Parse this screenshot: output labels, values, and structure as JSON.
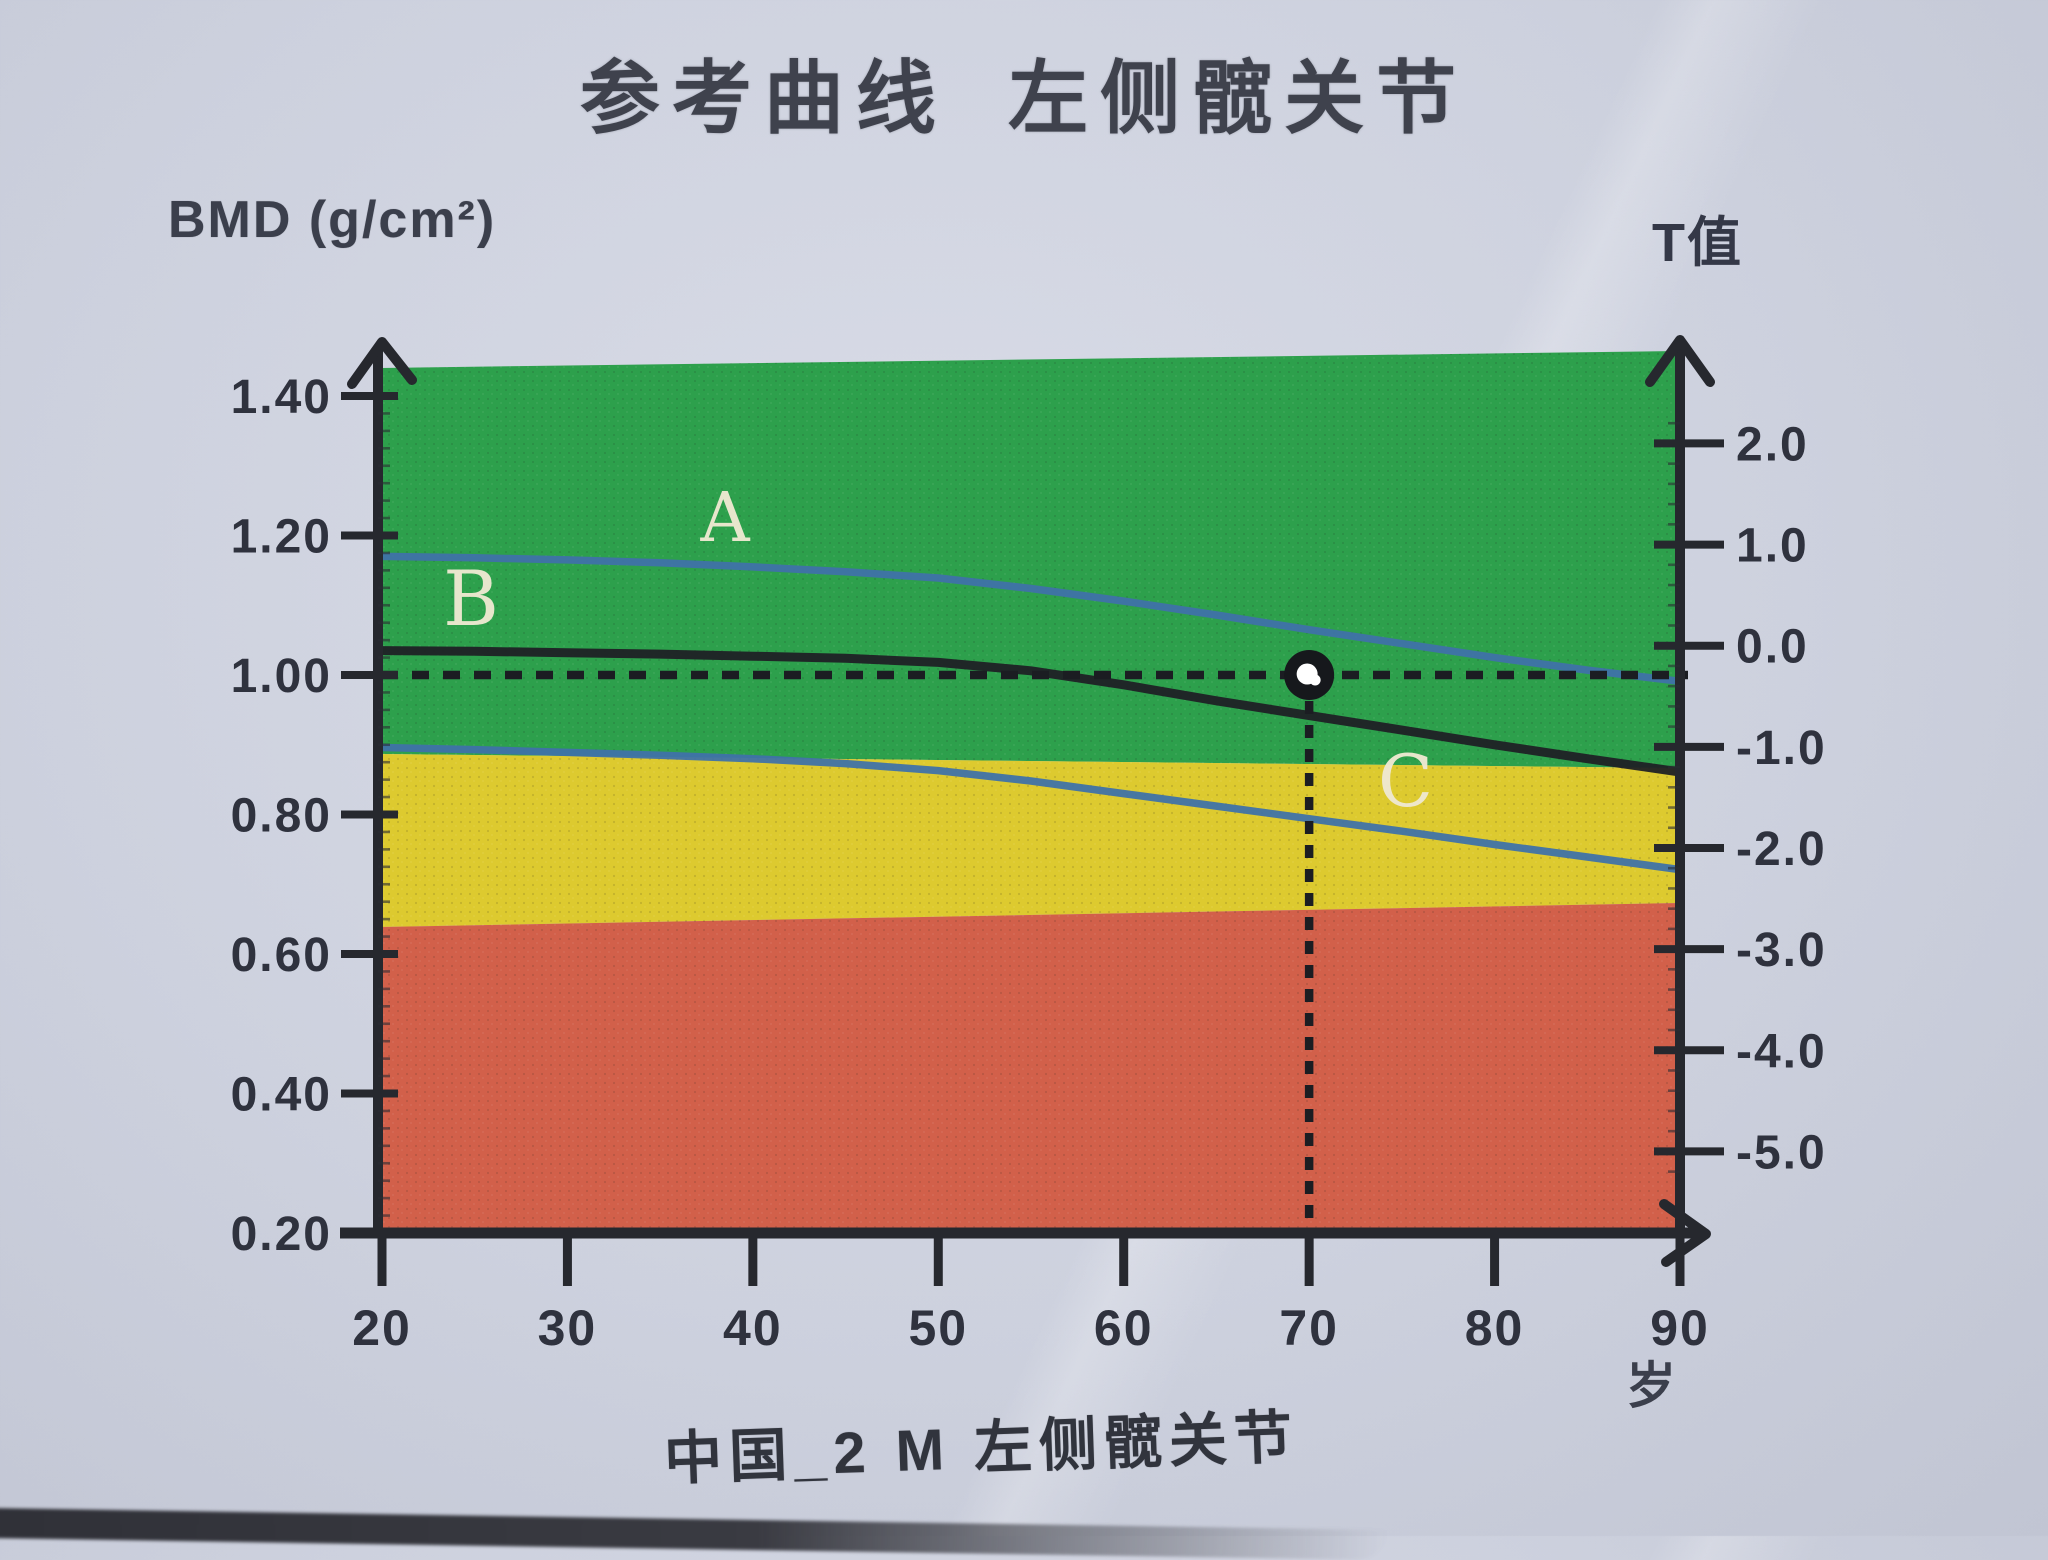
{
  "page": {
    "title": "参考曲线 左侧髋关节",
    "left_axis_label": "BMD (g/cm²)",
    "right_axis_label": "T值",
    "x_axis_unit": "岁",
    "caption": "中国_2 M 左侧髋关节"
  },
  "colors": {
    "paper": "#cdd1de",
    "text_dark": "#31343f",
    "zone_green": "#2da04c",
    "zone_yellow": "#ddca2f",
    "zone_red": "#d2604a",
    "curve_blue": "#3f72a8",
    "curve_black": "#1f2125",
    "curve_letter": "#efe9d2",
    "marker_fill": "#16181c",
    "marker_dot": "#ffffff"
  },
  "chart_data": {
    "type": "line",
    "title": "参考曲线 左侧髋关节",
    "xlabel": "岁",
    "ylabel_left": "BMD (g/cm²)",
    "ylabel_right": "T值",
    "grid": false,
    "age": {
      "min": 20,
      "max": 90,
      "ticks": [
        20,
        30,
        40,
        50,
        60,
        70,
        80,
        90
      ]
    },
    "bmd": {
      "min": 0.2,
      "max": 1.4,
      "ticks": [
        "1.40",
        "1.20",
        "1.00",
        "0.80",
        "0.60",
        "0.40",
        "0.20"
      ],
      "tick_values": [
        1.4,
        1.2,
        1.0,
        0.8,
        0.6,
        0.4,
        0.2
      ]
    },
    "t": {
      "ticks": [
        "2.0",
        "1.0",
        "0.0",
        "-1.0",
        "-2.0",
        "-3.0",
        "-4.0",
        "-5.0"
      ],
      "tick_values": [
        2.0,
        1.0,
        0.0,
        -1.0,
        -2.0,
        -3.0,
        -4.0,
        -5.0
      ],
      "bmd_at_t0": 1.042,
      "bmd_per_t": 0.145
    },
    "zones": {
      "green_above_bmd": 0.88,
      "yellow_between_bmd": [
        0.66,
        0.88
      ],
      "red_below_bmd": 0.66
    },
    "x": [
      20,
      25,
      30,
      35,
      40,
      45,
      50,
      55,
      60,
      65,
      70,
      75,
      80,
      85,
      90
    ],
    "series": [
      {
        "name": "A",
        "color": "#3f72a8",
        "values": [
          1.17,
          1.168,
          1.165,
          1.161,
          1.155,
          1.148,
          1.139,
          1.124,
          1.106,
          1.086,
          1.065,
          1.045,
          1.025,
          1.007,
          0.991
        ]
      },
      {
        "name": "B",
        "color": "#1f2125",
        "values": [
          1.035,
          1.034,
          1.032,
          1.03,
          1.027,
          1.024,
          1.018,
          1.006,
          0.986,
          0.963,
          0.942,
          0.921,
          0.9,
          0.88,
          0.861
        ]
      },
      {
        "name": "C",
        "color": "#3f72a8",
        "values": [
          0.896,
          0.893,
          0.889,
          0.885,
          0.88,
          0.873,
          0.863,
          0.848,
          0.83,
          0.812,
          0.794,
          0.776,
          0.757,
          0.739,
          0.721
        ]
      }
    ],
    "curve_labels": [
      {
        "text": "A",
        "age": 38.5,
        "bmd": 1.192,
        "size": 68
      },
      {
        "text": "B",
        "age": 24.8,
        "bmd": 1.072,
        "size": 76
      },
      {
        "text": "C",
        "age": 75.2,
        "bmd": 0.812,
        "size": 72
      }
    ],
    "patient_point": {
      "age": 70,
      "bmd": 1.0
    },
    "reference_lines": {
      "horizontal_dashed_bmd": 1.0,
      "vertical_dashed_age": 70
    }
  }
}
